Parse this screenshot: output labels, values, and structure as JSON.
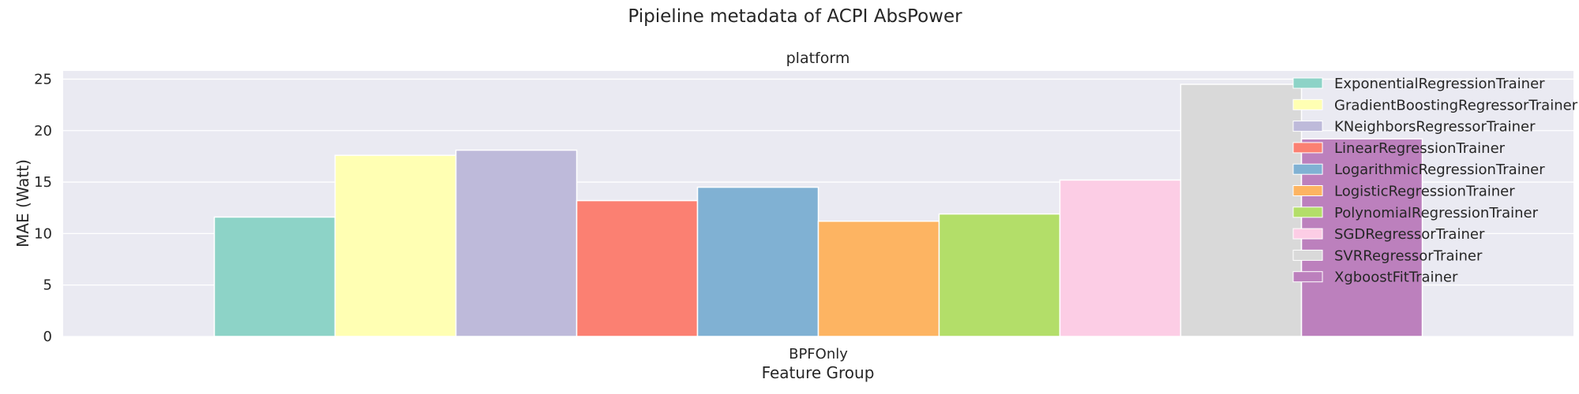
{
  "chart_data": {
    "type": "bar",
    "suptitle": "Pipieline metadata of ACPI AbsPower",
    "title": "platform",
    "xlabel": "Feature Group",
    "ylabel": "MAE (Watt)",
    "categories": [
      "BPFOnly"
    ],
    "ylim": [
      0,
      25.8
    ],
    "yticks": [
      "0",
      "5",
      "10",
      "15",
      "20",
      "25"
    ],
    "grid": true,
    "legend_position": "top-right",
    "series": [
      {
        "name": "ExponentialRegressionTrainer",
        "values": [
          11.6
        ],
        "color": "#8dd3c7"
      },
      {
        "name": "GradientBoostingRegressorTrainer",
        "values": [
          17.6
        ],
        "color": "#ffffb3"
      },
      {
        "name": "KNeighborsRegressorTrainer",
        "values": [
          18.1
        ],
        "color": "#bebada"
      },
      {
        "name": "LinearRegressionTrainer",
        "values": [
          13.2
        ],
        "color": "#fb8072"
      },
      {
        "name": "LogarithmicRegressionTrainer",
        "values": [
          14.5
        ],
        "color": "#80b1d3"
      },
      {
        "name": "LogisticRegressionTrainer",
        "values": [
          11.2
        ],
        "color": "#fdb462"
      },
      {
        "name": "PolynomialRegressionTrainer",
        "values": [
          11.9
        ],
        "color": "#b3de69"
      },
      {
        "name": "SGDRegressorTrainer",
        "values": [
          15.2
        ],
        "color": "#fccde5"
      },
      {
        "name": "SVRRegressorTrainer",
        "values": [
          24.5
        ],
        "color": "#d9d9d9"
      },
      {
        "name": "XgboostFitTrainer",
        "values": [
          19.2
        ],
        "color": "#bc80bd"
      }
    ]
  }
}
